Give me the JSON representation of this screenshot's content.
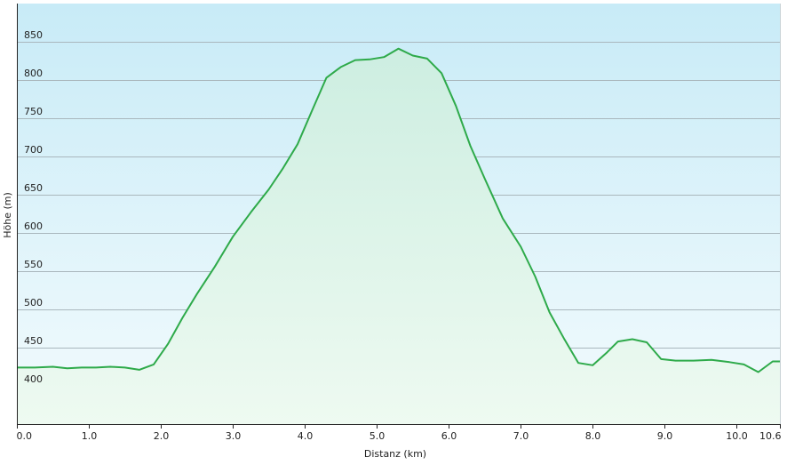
{
  "chart_data": {
    "type": "area",
    "xlabel": "Distanz  (km)",
    "ylabel": "Höhe (m)",
    "xlim": [
      0,
      10.6
    ],
    "ylim": [
      350,
      900
    ],
    "x_ticks": [
      0,
      1,
      2,
      3,
      4,
      5,
      6,
      7,
      8,
      9,
      10,
      10.6
    ],
    "x_tick_labels": [
      "0.0",
      "1.0",
      "2.0",
      "3.0",
      "4.0",
      "5.0",
      "6.0",
      "7.0",
      "8.0",
      "9.0",
      "10.0",
      "10.6"
    ],
    "y_ticks": [
      400,
      450,
      500,
      550,
      600,
      650,
      700,
      750,
      800,
      850
    ],
    "y_tick_labels": [
      "400",
      "450",
      "500",
      "550",
      "600",
      "650",
      "700",
      "750",
      "800",
      "850"
    ],
    "grid": true,
    "colors": {
      "line": "#2eaa4a",
      "fill_top": "#cdeee1",
      "fill_bottom": "#eefaf1",
      "bg_top": "#c8ebf7",
      "bg_bottom": "#f3fbfd",
      "grid": "#a9b7bd",
      "axis": "#222222"
    },
    "series": [
      {
        "points": [
          [
            0.0,
            424
          ],
          [
            0.25,
            424
          ],
          [
            0.5,
            425
          ],
          [
            0.7,
            423
          ],
          [
            0.9,
            424
          ],
          [
            1.1,
            424
          ],
          [
            1.3,
            425
          ],
          [
            1.5,
            424
          ],
          [
            1.7,
            421
          ],
          [
            1.9,
            428
          ],
          [
            2.1,
            455
          ],
          [
            2.3,
            489
          ],
          [
            2.5,
            520
          ],
          [
            2.75,
            556
          ],
          [
            3.0,
            595
          ],
          [
            3.25,
            627
          ],
          [
            3.5,
            657
          ],
          [
            3.7,
            685
          ],
          [
            3.9,
            716
          ],
          [
            4.1,
            760
          ],
          [
            4.3,
            803
          ],
          [
            4.5,
            817
          ],
          [
            4.7,
            826
          ],
          [
            4.9,
            827
          ],
          [
            5.1,
            830
          ],
          [
            5.3,
            841
          ],
          [
            5.5,
            832
          ],
          [
            5.7,
            828
          ],
          [
            5.9,
            809
          ],
          [
            6.1,
            766
          ],
          [
            6.3,
            714
          ],
          [
            6.5,
            671
          ],
          [
            6.75,
            619
          ],
          [
            7.0,
            582
          ],
          [
            7.2,
            543
          ],
          [
            7.4,
            496
          ],
          [
            7.6,
            462
          ],
          [
            7.8,
            430
          ],
          [
            8.0,
            427
          ],
          [
            8.2,
            444
          ],
          [
            8.35,
            458
          ],
          [
            8.55,
            461
          ],
          [
            8.75,
            457
          ],
          [
            8.95,
            435
          ],
          [
            9.15,
            433
          ],
          [
            9.4,
            433
          ],
          [
            9.65,
            434
          ],
          [
            9.9,
            431
          ],
          [
            10.1,
            428
          ],
          [
            10.3,
            418
          ],
          [
            10.5,
            432
          ],
          [
            10.6,
            432
          ]
        ]
      }
    ]
  }
}
